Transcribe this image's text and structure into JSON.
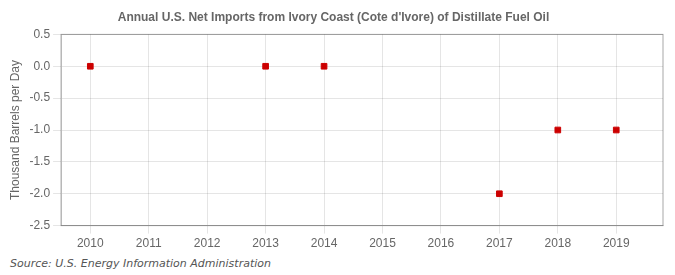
{
  "chart_data": {
    "type": "scatter",
    "title": "Annual U.S. Net Imports from Ivory Coast (Cote d'Ivore) of Distillate Fuel Oil",
    "y_label": "Thousand Barrels per Day",
    "annotations": [
      "Source: U.S. Energy Information Administration"
    ],
    "x": [
      2010,
      2013,
      2014,
      2017,
      2018,
      2019
    ],
    "values": [
      0,
      0,
      0,
      -2,
      -1,
      -1
    ],
    "color": "#cc0000",
    "marker": "square",
    "xlim": [
      2009.5,
      2019.8
    ],
    "ylim": [
      -2.5,
      0.5
    ],
    "xticks": [
      2010,
      2011,
      2012,
      2013,
      2014,
      2015,
      2016,
      2017,
      2018,
      2019
    ],
    "yticks": [
      0.5,
      {
        "value": 0,
        "label": "0.0"
      },
      -0.5,
      {
        "value": -1,
        "label": "-1.0"
      },
      -1.5,
      {
        "value": -2,
        "label": "-2.0"
      },
      -2.5
    ],
    "grid": true
  }
}
